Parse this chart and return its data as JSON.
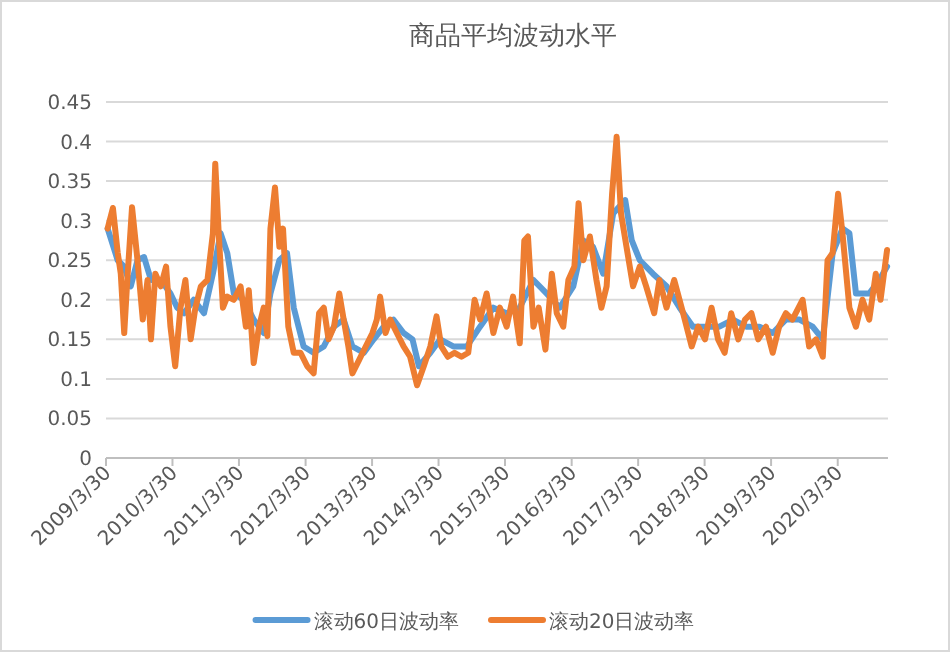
{
  "chart_data": {
    "type": "line",
    "title": "商品平均波动水平",
    "xlim": [
      "2009-03-30",
      "2020-12-31"
    ],
    "ylim": [
      0,
      0.45
    ],
    "xticks": [
      {
        "value": "2009-03-30",
        "label": "2009/3/30"
      },
      {
        "value": "2010-03-30",
        "label": "2010/3/30"
      },
      {
        "value": "2011-03-30",
        "label": "2011/3/30"
      },
      {
        "value": "2012-03-30",
        "label": "2012/3/30"
      },
      {
        "value": "2013-03-30",
        "label": "2013/3/30"
      },
      {
        "value": "2014-03-30",
        "label": "2014/3/30"
      },
      {
        "value": "2015-03-30",
        "label": "2015/3/30"
      },
      {
        "value": "2016-03-30",
        "label": "2016/3/30"
      },
      {
        "value": "2017-03-30",
        "label": "2017/3/30"
      },
      {
        "value": "2018-03-30",
        "label": "2018/3/30"
      },
      {
        "value": "2019-03-30",
        "label": "2019/3/30"
      },
      {
        "value": "2020-03-30",
        "label": "2020/3/30"
      }
    ],
    "yticks": [
      0,
      0.05,
      0.1,
      0.15,
      0.2,
      0.25,
      0.3,
      0.35,
      0.4,
      0.45
    ],
    "grid": "y",
    "legend": "bottom",
    "series": [
      {
        "name": "滚动60日波动率",
        "color": "#5b9bd5",
        "x": [
          "2009-04-08",
          "2009-06-02",
          "2009-07-08",
          "2009-08-13",
          "2009-09-19",
          "2009-10-25",
          "2009-12-02",
          "2010-01-25",
          "2010-03-19",
          "2010-04-25",
          "2010-06-02",
          "2010-07-25",
          "2010-09-19",
          "2010-11-07",
          "2010-12-19",
          "2011-01-25",
          "2011-03-02",
          "2011-04-25",
          "2011-06-19",
          "2011-08-13",
          "2011-09-19",
          "2011-11-07",
          "2011-12-19",
          "2012-01-25",
          "2012-03-19",
          "2012-05-13",
          "2012-07-08",
          "2012-09-02",
          "2012-10-25",
          "2012-12-12",
          "2013-02-13",
          "2013-04-08",
          "2013-06-02",
          "2013-07-25",
          "2013-09-19",
          "2013-11-07",
          "2013-12-12",
          "2014-02-13",
          "2014-04-08",
          "2014-06-19",
          "2014-09-02",
          "2014-11-13",
          "2015-01-25",
          "2015-04-08",
          "2015-06-19",
          "2015-09-02",
          "2015-11-13",
          "2016-01-25",
          "2016-04-08",
          "2016-06-02",
          "2016-07-25",
          "2016-09-19",
          "2016-11-13",
          "2017-01-18",
          "2017-02-23",
          "2017-04-08",
          "2017-06-19",
          "2017-09-02",
          "2017-11-13",
          "2018-01-25",
          "2018-04-08",
          "2018-06-19",
          "2018-09-02",
          "2018-11-13",
          "2019-01-25",
          "2019-04-08",
          "2019-06-19",
          "2019-09-02",
          "2019-11-13",
          "2020-01-08",
          "2020-03-02",
          "2020-04-25",
          "2020-06-02",
          "2020-07-08",
          "2020-09-19",
          "2020-11-13",
          "2020-12-26"
        ],
        "values": [
          0.29,
          0.25,
          0.242,
          0.217,
          0.25,
          0.254,
          0.225,
          0.225,
          0.208,
          0.19,
          0.183,
          0.2,
          0.183,
          0.233,
          0.284,
          0.259,
          0.208,
          0.2,
          0.175,
          0.158,
          0.208,
          0.25,
          0.259,
          0.19,
          0.141,
          0.133,
          0.141,
          0.166,
          0.175,
          0.141,
          0.133,
          0.15,
          0.166,
          0.175,
          0.158,
          0.15,
          0.116,
          0.133,
          0.15,
          0.141,
          0.141,
          0.166,
          0.19,
          0.183,
          0.19,
          0.225,
          0.208,
          0.19,
          0.217,
          0.275,
          0.267,
          0.233,
          0.309,
          0.326,
          0.275,
          0.25,
          0.233,
          0.217,
          0.19,
          0.166,
          0.166,
          0.166,
          0.175,
          0.166,
          0.166,
          0.158,
          0.175,
          0.175,
          0.166,
          0.15,
          0.259,
          0.29,
          0.284,
          0.208,
          0.208,
          0.225,
          0.242
        ]
      },
      {
        "name": "滚动20日波动率",
        "color": "#ed7d31",
        "x": [
          "2009-04-08",
          "2009-05-07",
          "2009-06-02",
          "2009-06-19",
          "2009-07-08",
          "2009-07-25",
          "2009-08-20",
          "2009-09-19",
          "2009-10-18",
          "2009-11-13",
          "2009-12-02",
          "2009-12-26",
          "2010-01-25",
          "2010-02-23",
          "2010-03-19",
          "2010-04-14",
          "2010-05-13",
          "2010-06-09",
          "2010-07-08",
          "2010-08-03",
          "2010-09-02",
          "2010-10-08",
          "2010-11-07",
          "2010-11-20",
          "2010-12-09",
          "2011-01-01",
          "2011-01-25",
          "2011-03-02",
          "2011-04-08",
          "2011-05-07",
          "2011-05-23",
          "2011-06-19",
          "2011-07-18",
          "2011-08-13",
          "2011-09-02",
          "2011-09-19",
          "2011-10-14",
          "2011-11-07",
          "2011-11-27",
          "2011-12-26",
          "2012-01-25",
          "2012-03-02",
          "2012-04-08",
          "2012-05-13",
          "2012-06-12",
          "2012-07-08",
          "2012-08-03",
          "2012-09-02",
          "2012-10-01",
          "2012-10-25",
          "2012-11-20",
          "2012-12-12",
          "2013-01-18",
          "2013-02-23",
          "2013-04-01",
          "2013-04-25",
          "2013-05-13",
          "2013-06-12",
          "2013-07-08",
          "2013-08-13",
          "2013-09-19",
          "2013-10-25",
          "2013-12-02",
          "2014-01-08",
          "2014-02-13",
          "2014-03-19",
          "2014-04-14",
          "2014-05-20",
          "2014-06-26",
          "2014-08-03",
          "2014-09-09",
          "2014-10-14",
          "2014-11-13",
          "2014-12-19",
          "2015-01-25",
          "2015-03-02",
          "2015-04-08",
          "2015-05-13",
          "2015-06-19",
          "2015-07-14",
          "2015-08-03",
          "2015-09-02",
          "2015-10-01",
          "2015-11-07",
          "2015-12-12",
          "2016-01-08",
          "2016-02-13",
          "2016-03-12",
          "2016-04-14",
          "2016-05-07",
          "2016-06-02",
          "2016-07-08",
          "2016-08-13",
          "2016-09-09",
          "2016-10-08",
          "2016-11-07",
          "2016-12-02",
          "2016-12-26",
          "2017-01-25",
          "2017-03-02",
          "2017-04-08",
          "2017-05-13",
          "2017-06-26",
          "2017-07-25",
          "2017-09-02",
          "2017-10-14",
          "2017-12-02",
          "2018-01-18",
          "2018-02-23",
          "2018-04-01",
          "2018-05-07",
          "2018-06-12",
          "2018-07-18",
          "2018-08-23",
          "2018-10-01",
          "2018-11-07",
          "2018-12-12",
          "2019-01-18",
          "2019-03-02",
          "2019-04-08",
          "2019-05-13",
          "2019-06-19",
          "2019-07-25",
          "2019-09-19",
          "2019-10-25",
          "2019-12-02",
          "2020-01-08",
          "2020-02-03",
          "2020-03-02",
          "2020-04-01",
          "2020-04-25",
          "2020-06-02",
          "2020-07-08",
          "2020-08-13",
          "2020-09-19",
          "2020-10-25",
          "2020-11-20",
          "2020-12-26"
        ],
        "values": [
          0.29,
          0.316,
          0.26,
          0.233,
          0.158,
          0.225,
          0.317,
          0.25,
          0.175,
          0.225,
          0.15,
          0.233,
          0.217,
          0.242,
          0.166,
          0.116,
          0.19,
          0.225,
          0.15,
          0.19,
          0.217,
          0.225,
          0.284,
          0.372,
          0.284,
          0.19,
          0.204,
          0.2,
          0.217,
          0.166,
          0.212,
          0.12,
          0.166,
          0.19,
          0.154,
          0.29,
          0.342,
          0.267,
          0.29,
          0.166,
          0.133,
          0.133,
          0.116,
          0.107,
          0.183,
          0.19,
          0.15,
          0.166,
          0.208,
          0.175,
          0.141,
          0.107,
          0.124,
          0.141,
          0.158,
          0.175,
          0.204,
          0.158,
          0.175,
          0.158,
          0.141,
          0.128,
          0.092,
          0.116,
          0.141,
          0.179,
          0.141,
          0.128,
          0.133,
          0.128,
          0.133,
          0.2,
          0.175,
          0.208,
          0.158,
          0.19,
          0.166,
          0.204,
          0.145,
          0.275,
          0.28,
          0.166,
          0.19,
          0.137,
          0.233,
          0.183,
          0.166,
          0.225,
          0.242,
          0.322,
          0.25,
          0.28,
          0.225,
          0.19,
          0.217,
          0.334,
          0.406,
          0.309,
          0.267,
          0.217,
          0.242,
          0.217,
          0.183,
          0.225,
          0.19,
          0.225,
          0.183,
          0.141,
          0.166,
          0.15,
          0.19,
          0.15,
          0.133,
          0.183,
          0.15,
          0.175,
          0.183,
          0.15,
          0.166,
          0.133,
          0.166,
          0.183,
          0.175,
          0.2,
          0.141,
          0.15,
          0.128,
          0.25,
          0.259,
          0.334,
          0.284,
          0.19,
          0.166,
          0.2,
          0.175,
          0.233,
          0.2,
          0.263
        ]
      }
    ]
  }
}
